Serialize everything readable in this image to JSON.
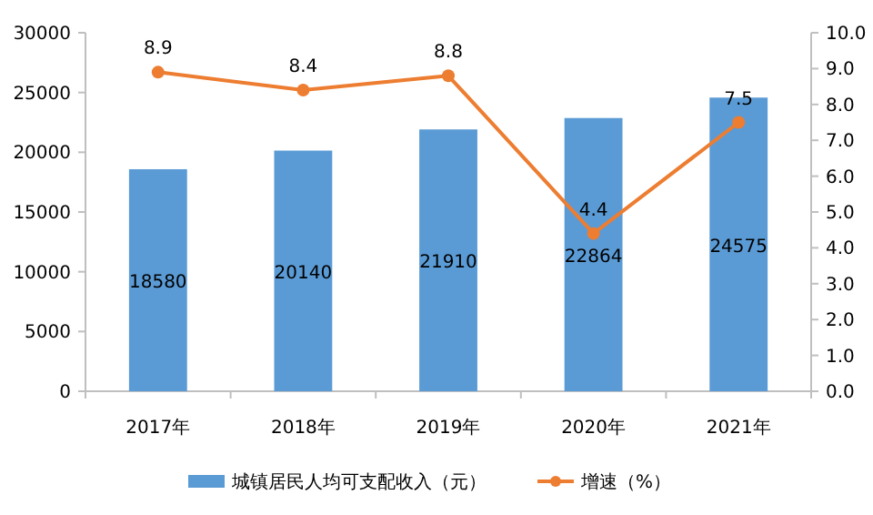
{
  "chart_data": {
    "type": "bar",
    "categories": [
      "2017年",
      "2018年",
      "2019年",
      "2020年",
      "2021年"
    ],
    "series": [
      {
        "name": "城镇居民人均可支配收入（元）",
        "color": "#5b9bd5",
        "values": [
          18580,
          20140,
          21910,
          22864,
          24575
        ]
      },
      {
        "name": "增速（%）",
        "type": "line",
        "axis": "y2",
        "color": "#ed7d31",
        "marker": "circle",
        "values": [
          8.9,
          8.4,
          8.8,
          4.4,
          7.5
        ]
      }
    ],
    "ylim": [
      0,
      30000
    ],
    "yticks": [
      0,
      5000,
      10000,
      15000,
      20000,
      25000,
      30000
    ],
    "y2lim": [
      0,
      10
    ],
    "y2ticks": [
      {
        "value": 0,
        "label": "0.0"
      },
      {
        "value": 1,
        "label": "1.0"
      },
      {
        "value": 2,
        "label": "2.0"
      },
      {
        "value": 3,
        "label": "3.0"
      },
      {
        "value": 4,
        "label": "4.0"
      },
      {
        "value": 5,
        "label": "5.0"
      },
      {
        "value": 6,
        "label": "6.0"
      },
      {
        "value": 7,
        "label": "7.0"
      },
      {
        "value": 8,
        "label": "8.0"
      },
      {
        "value": 9,
        "label": "9.0"
      },
      {
        "value": 10,
        "label": "10.0"
      }
    ],
    "data_labels": true,
    "legend": "bottom"
  }
}
